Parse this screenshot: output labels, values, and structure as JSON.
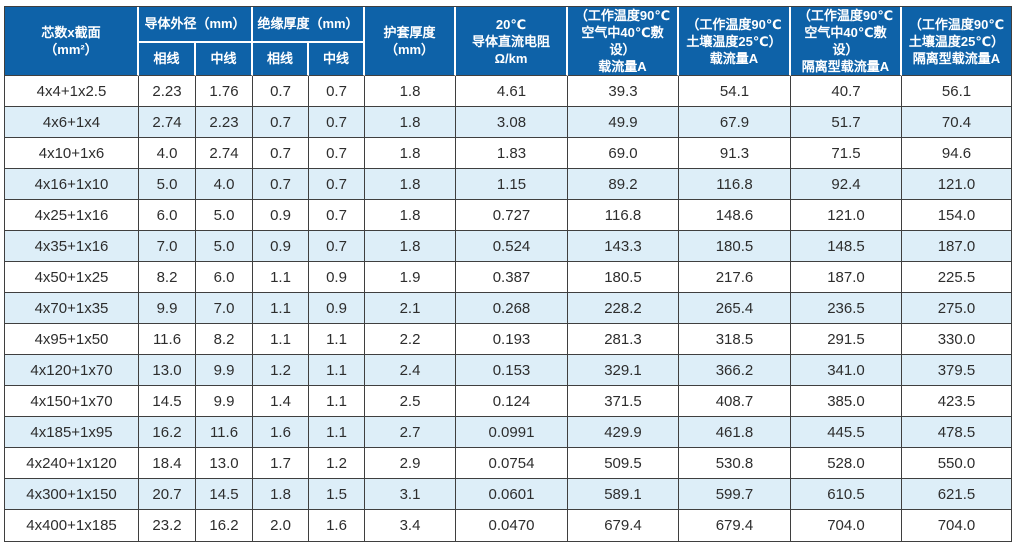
{
  "colors": {
    "header_bg": "#0e62a8",
    "header_text": "#ffffff",
    "row_alt_bg": "#ddeef8",
    "grid_line": "#3f3f3f",
    "body_text": "#2d2d2d"
  },
  "table": {
    "header": {
      "core": "芯数x截面\n（mm²）",
      "conductor_od": "导体外径（mm）",
      "insulation": "绝缘厚度（mm）",
      "phase": "相线",
      "neutral": "中线",
      "sheath": "护套厚度\n（mm）",
      "resistance": "20℃\n导体直流电阻\nΩ/km",
      "ampacity_air": "（工作温度90℃\n空气中40℃敷设）\n载流量A",
      "ampacity_soil": "（工作温度90℃\n土壤温度25℃）\n载流量A",
      "ampacity_air_isolated": "（工作温度90℃\n空气中40℃敷设）\n隔离型载流量A",
      "ampacity_soil_isolated": "（工作温度90℃\n土壤温度25℃）\n隔离型载流量A"
    },
    "rows": [
      [
        "4x4+1x2.5",
        "2.23",
        "1.76",
        "0.7",
        "0.7",
        "1.8",
        "4.61",
        "39.3",
        "54.1",
        "40.7",
        "56.1"
      ],
      [
        "4x6+1x4",
        "2.74",
        "2.23",
        "0.7",
        "0.7",
        "1.8",
        "3.08",
        "49.9",
        "67.9",
        "51.7",
        "70.4"
      ],
      [
        "4x10+1x6",
        "4.0",
        "2.74",
        "0.7",
        "0.7",
        "1.8",
        "1.83",
        "69.0",
        "91.3",
        "71.5",
        "94.6"
      ],
      [
        "4x16+1x10",
        "5.0",
        "4.0",
        "0.7",
        "0.7",
        "1.8",
        "1.15",
        "89.2",
        "116.8",
        "92.4",
        "121.0"
      ],
      [
        "4x25+1x16",
        "6.0",
        "5.0",
        "0.9",
        "0.7",
        "1.8",
        "0.727",
        "116.8",
        "148.6",
        "121.0",
        "154.0"
      ],
      [
        "4x35+1x16",
        "7.0",
        "5.0",
        "0.9",
        "0.7",
        "1.8",
        "0.524",
        "143.3",
        "180.5",
        "148.5",
        "187.0"
      ],
      [
        "4x50+1x25",
        "8.2",
        "6.0",
        "1.1",
        "0.9",
        "1.9",
        "0.387",
        "180.5",
        "217.6",
        "187.0",
        "225.5"
      ],
      [
        "4x70+1x35",
        "9.9",
        "7.0",
        "1.1",
        "0.9",
        "2.1",
        "0.268",
        "228.2",
        "265.4",
        "236.5",
        "275.0"
      ],
      [
        "4x95+1x50",
        "11.6",
        "8.2",
        "1.1",
        "1.1",
        "2.2",
        "0.193",
        "281.3",
        "318.5",
        "291.5",
        "330.0"
      ],
      [
        "4x120+1x70",
        "13.0",
        "9.9",
        "1.2",
        "1.1",
        "2.4",
        "0.153",
        "329.1",
        "366.2",
        "341.0",
        "379.5"
      ],
      [
        "4x150+1x70",
        "14.5",
        "9.9",
        "1.4",
        "1.1",
        "2.5",
        "0.124",
        "371.5",
        "408.7",
        "385.0",
        "423.5"
      ],
      [
        "4x185+1x95",
        "16.2",
        "11.6",
        "1.6",
        "1.1",
        "2.7",
        "0.0991",
        "429.9",
        "461.8",
        "445.5",
        "478.5"
      ],
      [
        "4x240+1x120",
        "18.4",
        "13.0",
        "1.7",
        "1.2",
        "2.9",
        "0.0754",
        "509.5",
        "530.8",
        "528.0",
        "550.0"
      ],
      [
        "4x300+1x150",
        "20.7",
        "14.5",
        "1.8",
        "1.5",
        "3.1",
        "0.0601",
        "589.1",
        "599.7",
        "610.5",
        "621.5"
      ],
      [
        "4x400+1x185",
        "23.2",
        "16.2",
        "2.0",
        "1.6",
        "3.4",
        "0.0470",
        "679.4",
        "679.4",
        "704.0",
        "704.0"
      ]
    ]
  }
}
